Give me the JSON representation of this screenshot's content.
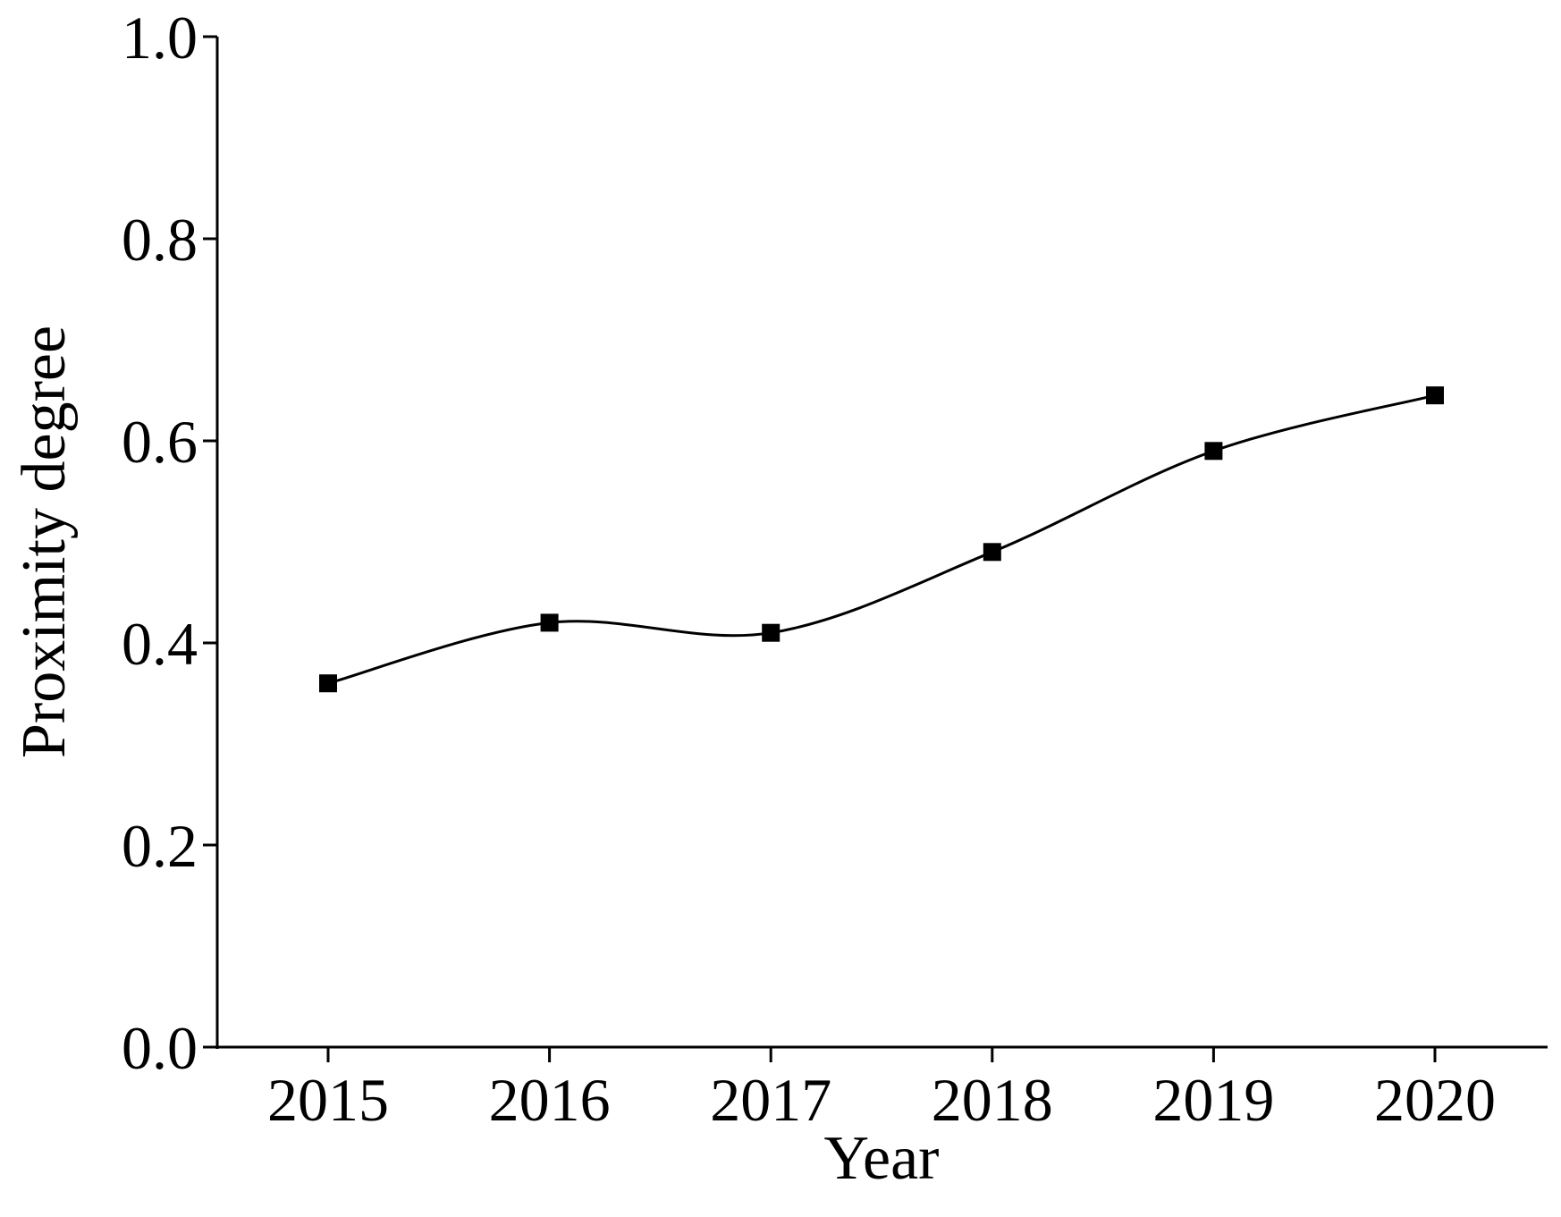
{
  "chart_data": {
    "type": "line",
    "x_label": "Year",
    "y_label": "Proximity degree",
    "categories": [
      "2015",
      "2016",
      "2017",
      "2018",
      "2019",
      "2020"
    ],
    "series": [
      {
        "color": "#000000",
        "values": [
          0.36,
          0.42,
          0.41,
          0.49,
          0.59,
          0.645
        ]
      }
    ],
    "ylim": [
      0,
      1
    ],
    "yticks": [
      {
        "value": 0,
        "label": "0.0"
      },
      0.2,
      0.4,
      0.6,
      0.8,
      {
        "value": 1,
        "label": "1.0"
      }
    ],
    "smooth": true,
    "marker": "square"
  }
}
